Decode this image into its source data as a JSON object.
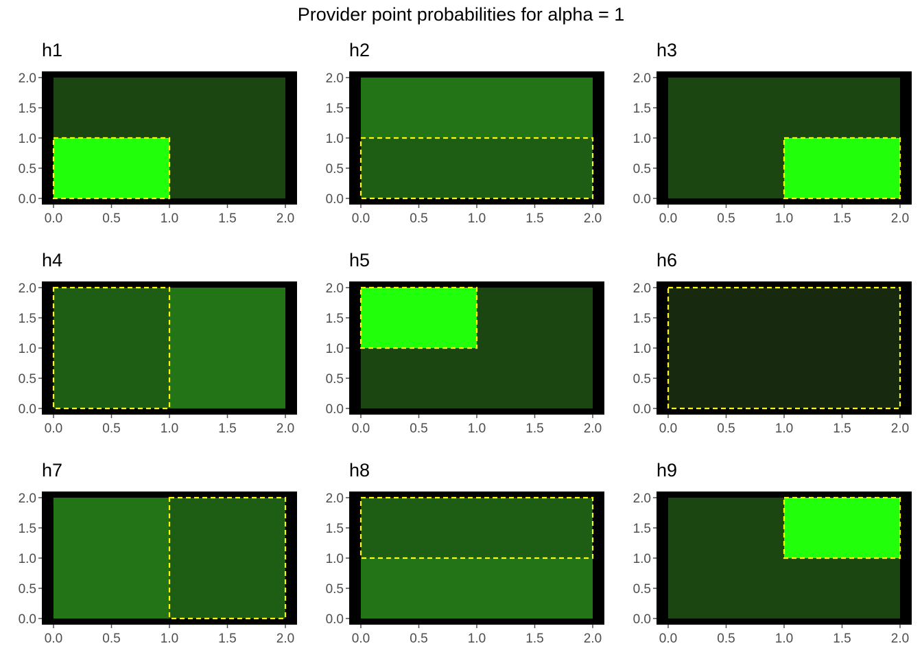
{
  "title": "Provider point probabilities for alpha = 1",
  "colors": {
    "panel_border": "#000000",
    "tick": "#4d4d4d",
    "hypothesis_outline": "#ffff00"
  },
  "chart_data": [
    {
      "type": "heatmap",
      "title": "h1",
      "xlim": [
        0,
        2
      ],
      "ylim": [
        0,
        2
      ],
      "x_ticks": [
        "0.0",
        "0.5",
        "1.0",
        "1.5",
        "2.0"
      ],
      "y_ticks": [
        "0.0",
        "0.5",
        "1.0",
        "1.5",
        "2.0"
      ],
      "cells": [
        {
          "x": [
            0,
            2
          ],
          "y": [
            0,
            2
          ],
          "fill": "#1b4511"
        },
        {
          "x": [
            0,
            1
          ],
          "y": [
            0,
            1
          ],
          "fill": "#22ff0b"
        }
      ],
      "outline": {
        "x": [
          0,
          1
        ],
        "y": [
          0,
          1
        ]
      }
    },
    {
      "type": "heatmap",
      "title": "h2",
      "xlim": [
        0,
        2
      ],
      "ylim": [
        0,
        2
      ],
      "x_ticks": [
        "0.0",
        "0.5",
        "1.0",
        "1.5",
        "2.0"
      ],
      "y_ticks": [
        "0.0",
        "0.5",
        "1.0",
        "1.5",
        "2.0"
      ],
      "cells": [
        {
          "x": [
            0,
            2
          ],
          "y": [
            1,
            2
          ],
          "fill": "#227416"
        },
        {
          "x": [
            0,
            2
          ],
          "y": [
            0,
            1
          ],
          "fill": "#1e5d14"
        }
      ],
      "outline": {
        "x": [
          0,
          2
        ],
        "y": [
          0,
          1
        ]
      }
    },
    {
      "type": "heatmap",
      "title": "h3",
      "xlim": [
        0,
        2
      ],
      "ylim": [
        0,
        2
      ],
      "x_ticks": [
        "0.0",
        "0.5",
        "1.0",
        "1.5",
        "2.0"
      ],
      "y_ticks": [
        "0.0",
        "0.5",
        "1.0",
        "1.5",
        "2.0"
      ],
      "cells": [
        {
          "x": [
            0,
            2
          ],
          "y": [
            0,
            2
          ],
          "fill": "#1b4511"
        },
        {
          "x": [
            1,
            2
          ],
          "y": [
            0,
            1
          ],
          "fill": "#22ff0b"
        }
      ],
      "outline": {
        "x": [
          1,
          2
        ],
        "y": [
          0,
          1
        ]
      }
    },
    {
      "type": "heatmap",
      "title": "h4",
      "xlim": [
        0,
        2
      ],
      "ylim": [
        0,
        2
      ],
      "x_ticks": [
        "0.0",
        "0.5",
        "1.0",
        "1.5",
        "2.0"
      ],
      "y_ticks": [
        "0.0",
        "0.5",
        "1.0",
        "1.5",
        "2.0"
      ],
      "cells": [
        {
          "x": [
            0,
            1
          ],
          "y": [
            0,
            2
          ],
          "fill": "#1e5d14"
        },
        {
          "x": [
            1,
            2
          ],
          "y": [
            0,
            2
          ],
          "fill": "#227416"
        }
      ],
      "outline": {
        "x": [
          0,
          1
        ],
        "y": [
          0,
          2
        ]
      }
    },
    {
      "type": "heatmap",
      "title": "h5",
      "xlim": [
        0,
        2
      ],
      "ylim": [
        0,
        2
      ],
      "x_ticks": [
        "0.0",
        "0.5",
        "1.0",
        "1.5",
        "2.0"
      ],
      "y_ticks": [
        "0.0",
        "0.5",
        "1.0",
        "1.5",
        "2.0"
      ],
      "cells": [
        {
          "x": [
            0,
            2
          ],
          "y": [
            0,
            2
          ],
          "fill": "#1b4511"
        },
        {
          "x": [
            0,
            1
          ],
          "y": [
            1,
            2
          ],
          "fill": "#22ff0b"
        }
      ],
      "outline": {
        "x": [
          0,
          1
        ],
        "y": [
          1,
          2
        ]
      }
    },
    {
      "type": "heatmap",
      "title": "h6",
      "xlim": [
        0,
        2
      ],
      "ylim": [
        0,
        2
      ],
      "x_ticks": [
        "0.0",
        "0.5",
        "1.0",
        "1.5",
        "2.0"
      ],
      "y_ticks": [
        "0.0",
        "0.5",
        "1.0",
        "1.5",
        "2.0"
      ],
      "cells": [
        {
          "x": [
            0,
            2
          ],
          "y": [
            0,
            2
          ],
          "fill": "#172a10"
        }
      ],
      "outline": {
        "x": [
          0,
          2
        ],
        "y": [
          0,
          2
        ]
      }
    },
    {
      "type": "heatmap",
      "title": "h7",
      "xlim": [
        0,
        2
      ],
      "ylim": [
        0,
        2
      ],
      "x_ticks": [
        "0.0",
        "0.5",
        "1.0",
        "1.5",
        "2.0"
      ],
      "y_ticks": [
        "0.0",
        "0.5",
        "1.0",
        "1.5",
        "2.0"
      ],
      "cells": [
        {
          "x": [
            0,
            1
          ],
          "y": [
            0,
            2
          ],
          "fill": "#227416"
        },
        {
          "x": [
            1,
            2
          ],
          "y": [
            0,
            2
          ],
          "fill": "#1e5d14"
        }
      ],
      "outline": {
        "x": [
          1,
          2
        ],
        "y": [
          0,
          2
        ]
      }
    },
    {
      "type": "heatmap",
      "title": "h8",
      "xlim": [
        0,
        2
      ],
      "ylim": [
        0,
        2
      ],
      "x_ticks": [
        "0.0",
        "0.5",
        "1.0",
        "1.5",
        "2.0"
      ],
      "y_ticks": [
        "0.0",
        "0.5",
        "1.0",
        "1.5",
        "2.0"
      ],
      "cells": [
        {
          "x": [
            0,
            2
          ],
          "y": [
            1,
            2
          ],
          "fill": "#1e5d14"
        },
        {
          "x": [
            0,
            2
          ],
          "y": [
            0,
            1
          ],
          "fill": "#227416"
        }
      ],
      "outline": {
        "x": [
          0,
          2
        ],
        "y": [
          1,
          2
        ]
      }
    },
    {
      "type": "heatmap",
      "title": "h9",
      "xlim": [
        0,
        2
      ],
      "ylim": [
        0,
        2
      ],
      "x_ticks": [
        "0.0",
        "0.5",
        "1.0",
        "1.5",
        "2.0"
      ],
      "y_ticks": [
        "0.0",
        "0.5",
        "1.0",
        "1.5",
        "2.0"
      ],
      "cells": [
        {
          "x": [
            0,
            2
          ],
          "y": [
            0,
            2
          ],
          "fill": "#1b4511"
        },
        {
          "x": [
            1,
            2
          ],
          "y": [
            1,
            2
          ],
          "fill": "#22ff0b"
        }
      ],
      "outline": {
        "x": [
          1,
          2
        ],
        "y": [
          1,
          2
        ]
      }
    }
  ]
}
